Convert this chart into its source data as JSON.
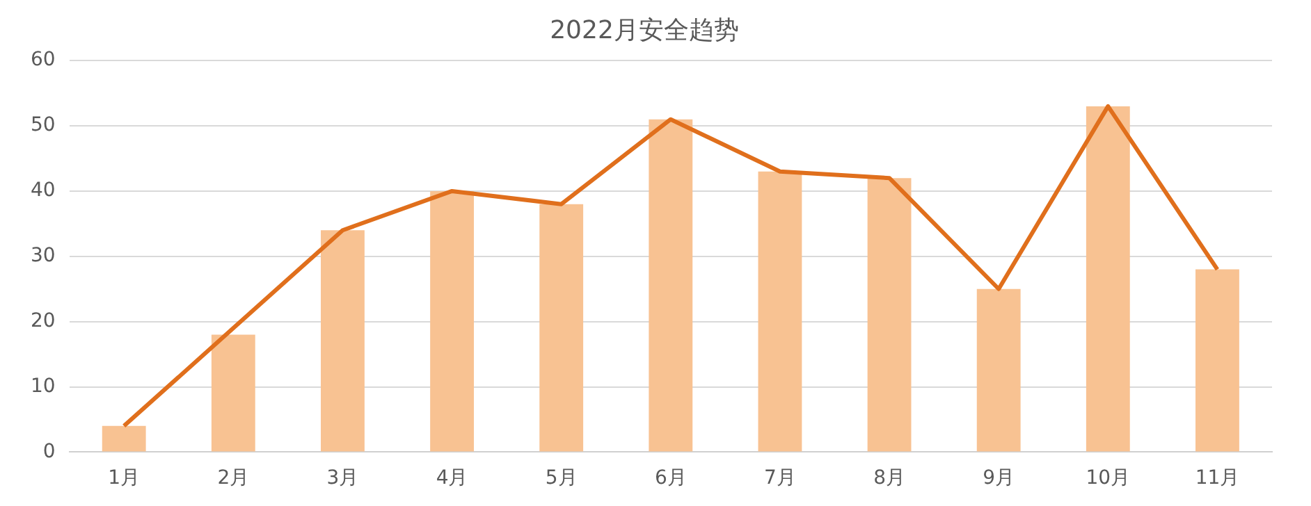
{
  "chart_data": {
    "type": "bar",
    "title": "2022月安全趋势",
    "categories": [
      "1月",
      "2月",
      "3月",
      "4月",
      "5月",
      "6月",
      "7月",
      "8月",
      "9月",
      "10月",
      "11月"
    ],
    "series": [
      {
        "color": "#f8c292",
        "values": [
          4,
          18,
          34,
          40,
          38,
          51,
          43,
          42,
          25,
          53,
          28
        ]
      },
      {
        "type": "line",
        "color": "#e06f1c",
        "values": [
          4,
          19,
          34,
          40,
          38,
          51,
          43,
          42,
          25,
          53,
          28
        ]
      }
    ],
    "ylim": [
      0,
      60
    ],
    "yticks": [
      0,
      10,
      20,
      30,
      40,
      50,
      60
    ],
    "grid": "y",
    "legend": false,
    "marker": "none"
  }
}
